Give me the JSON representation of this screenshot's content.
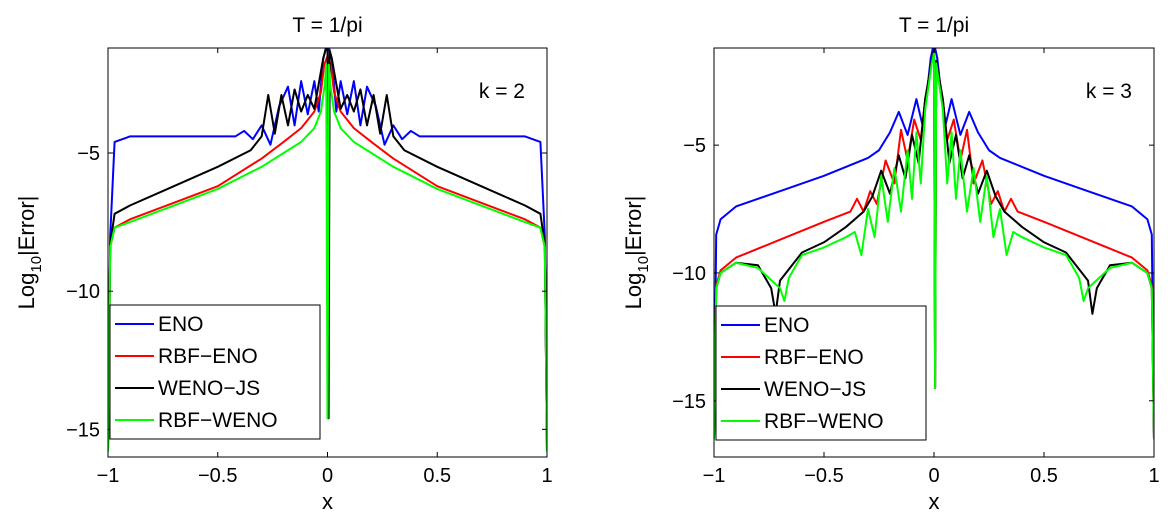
{
  "chart_data": [
    {
      "type": "line",
      "title": "T = 1/pi",
      "annotation": "k = 2",
      "xlabel": "x",
      "ylabel": {
        "base": "Log",
        "sub": "10",
        "rest": "|Error|"
      },
      "xlim": [
        -1,
        1
      ],
      "ylim": [
        -16,
        -1.2
      ],
      "xticks": [
        -1,
        -0.5,
        0,
        0.5,
        1
      ],
      "xtick_labels": [
        "−1",
        "−0.5",
        "0",
        "0.5",
        "1"
      ],
      "yticks": [
        -5,
        -10,
        -15
      ],
      "ytick_labels": [
        "−5",
        "−10",
        "−15"
      ],
      "legend_position": "lower-left",
      "series": [
        {
          "name": "ENO",
          "color": "#0000ff",
          "x": [
            -1.0,
            -0.99,
            -0.97,
            -0.9,
            -0.7,
            -0.5,
            -0.42,
            -0.38,
            -0.34,
            -0.3,
            -0.26,
            -0.22,
            -0.18,
            -0.15,
            -0.12,
            -0.09,
            -0.06,
            -0.04,
            -0.02,
            -0.01,
            0.0,
            0.01,
            0.02,
            0.04,
            0.06,
            0.09,
            0.12,
            0.15,
            0.18,
            0.22,
            0.26,
            0.3,
            0.34,
            0.38,
            0.42,
            0.5,
            0.7,
            0.9,
            0.97,
            0.99,
            1.0
          ],
          "y": [
            -15.8,
            -8.0,
            -4.6,
            -4.4,
            -4.4,
            -4.4,
            -4.4,
            -4.2,
            -4.5,
            -4.0,
            -4.7,
            -3.3,
            -2.6,
            -4.0,
            -2.4,
            -3.6,
            -2.4,
            -3.5,
            -1.6,
            -1.3,
            -0.9,
            -1.3,
            -1.6,
            -3.5,
            -2.4,
            -3.6,
            -2.4,
            -4.0,
            -2.6,
            -3.3,
            -4.7,
            -4.0,
            -4.5,
            -4.2,
            -4.4,
            -4.4,
            -4.4,
            -4.4,
            -4.6,
            -8.0,
            -15.8
          ]
        },
        {
          "name": "RBF−ENO",
          "color": "#ff0000",
          "x": [
            -1.0,
            -0.99,
            -0.97,
            -0.9,
            -0.7,
            -0.5,
            -0.3,
            -0.2,
            -0.12,
            -0.06,
            -0.03,
            -0.015,
            0.0,
            0.015,
            0.03,
            0.06,
            0.12,
            0.2,
            0.3,
            0.5,
            0.7,
            0.9,
            0.97,
            0.99,
            1.0
          ],
          "y": [
            -15.8,
            -8.4,
            -7.7,
            -7.4,
            -6.8,
            -6.2,
            -5.2,
            -4.6,
            -4.1,
            -3.5,
            -2.8,
            -1.8,
            -1.5,
            -1.8,
            -2.8,
            -3.5,
            -4.1,
            -4.6,
            -5.2,
            -6.2,
            -6.8,
            -7.4,
            -7.7,
            -8.4,
            -15.8
          ]
        },
        {
          "name": "WENO−JS",
          "color": "#000000",
          "x": [
            -1.0,
            -0.99,
            -0.97,
            -0.9,
            -0.7,
            -0.5,
            -0.35,
            -0.3,
            -0.27,
            -0.24,
            -0.21,
            -0.18,
            -0.15,
            -0.12,
            -0.09,
            -0.06,
            -0.04,
            -0.02,
            -0.01,
            0.0,
            0.005,
            0.01,
            0.02,
            0.04,
            0.06,
            0.09,
            0.12,
            0.15,
            0.18,
            0.21,
            0.24,
            0.27,
            0.3,
            0.35,
            0.5,
            0.7,
            0.9,
            0.97,
            0.99,
            1.0
          ],
          "y": [
            -15.8,
            -8.3,
            -7.2,
            -6.9,
            -6.2,
            -5.5,
            -4.9,
            -4.4,
            -2.9,
            -4.3,
            -2.9,
            -4.0,
            -2.7,
            -3.5,
            -2.9,
            -3.4,
            -2.5,
            -1.6,
            -1.3,
            -0.9,
            -14.6,
            -1.3,
            -1.6,
            -2.5,
            -3.4,
            -2.9,
            -3.5,
            -2.7,
            -4.0,
            -2.9,
            -4.3,
            -2.9,
            -4.4,
            -4.9,
            -5.5,
            -6.2,
            -6.9,
            -7.2,
            -8.3,
            -15.8
          ]
        },
        {
          "name": "RBF−WENO",
          "color": "#00ff00",
          "x": [
            -1.0,
            -0.99,
            -0.97,
            -0.9,
            -0.7,
            -0.5,
            -0.3,
            -0.2,
            -0.12,
            -0.06,
            -0.03,
            -0.012,
            -0.006,
            0.0,
            0.006,
            0.012,
            0.03,
            0.06,
            0.12,
            0.2,
            0.3,
            0.5,
            0.7,
            0.9,
            0.97,
            0.99,
            1.0
          ],
          "y": [
            -15.8,
            -8.4,
            -7.7,
            -7.5,
            -6.9,
            -6.3,
            -5.5,
            -5.0,
            -4.6,
            -4.1,
            -3.5,
            -2.5,
            -1.8,
            -14.6,
            -1.8,
            -2.5,
            -3.5,
            -4.1,
            -4.6,
            -5.0,
            -5.5,
            -6.3,
            -6.9,
            -7.5,
            -7.7,
            -8.4,
            -15.8
          ]
        }
      ]
    },
    {
      "type": "line",
      "title": "T = 1/pi",
      "annotation": "k = 3",
      "xlabel": "x",
      "ylabel": {
        "base": "Log",
        "sub": "10",
        "rest": "|Error|"
      },
      "xlim": [
        -1,
        1
      ],
      "ylim": [
        -17.2,
        -1.2
      ],
      "xticks": [
        -1,
        -0.5,
        0,
        0.5,
        1
      ],
      "xtick_labels": [
        "−1",
        "−0.5",
        "0",
        "0.5",
        "1"
      ],
      "yticks": [
        -5,
        -10,
        -15
      ],
      "ytick_labels": [
        "−5",
        "−10",
        "−15"
      ],
      "legend_position": "lower-left",
      "series": [
        {
          "name": "ENO",
          "color": "#0000ff",
          "x": [
            -1.0,
            -0.99,
            -0.97,
            -0.9,
            -0.7,
            -0.5,
            -0.3,
            -0.25,
            -0.2,
            -0.16,
            -0.12,
            -0.08,
            -0.05,
            -0.03,
            -0.015,
            0.0,
            0.015,
            0.03,
            0.05,
            0.08,
            0.12,
            0.16,
            0.2,
            0.25,
            0.3,
            0.5,
            0.7,
            0.9,
            0.97,
            0.99,
            1.0
          ],
          "y": [
            -16.5,
            -8.5,
            -7.9,
            -7.4,
            -6.8,
            -6.2,
            -5.5,
            -5.2,
            -4.5,
            -3.7,
            -4.6,
            -3.2,
            -4.3,
            -2.8,
            -1.6,
            -1.0,
            -1.6,
            -2.8,
            -4.3,
            -3.2,
            -4.6,
            -3.7,
            -4.5,
            -5.2,
            -5.5,
            -6.2,
            -6.8,
            -7.4,
            -7.9,
            -8.5,
            -16.5
          ]
        },
        {
          "name": "RBF−ENO",
          "color": "#ff0000",
          "x": [
            -1.0,
            -0.99,
            -0.97,
            -0.9,
            -0.7,
            -0.5,
            -0.38,
            -0.35,
            -0.32,
            -0.29,
            -0.26,
            -0.22,
            -0.18,
            -0.15,
            -0.12,
            -0.09,
            -0.06,
            -0.04,
            -0.02,
            -0.01,
            0.0,
            0.005,
            0.01,
            0.02,
            0.04,
            0.06,
            0.09,
            0.12,
            0.15,
            0.18,
            0.22,
            0.26,
            0.29,
            0.32,
            0.35,
            0.38,
            0.5,
            0.7,
            0.9,
            0.97,
            0.99,
            1.0
          ],
          "y": [
            -16.5,
            -10.5,
            -9.9,
            -9.4,
            -8.7,
            -8.0,
            -7.6,
            -7.1,
            -7.6,
            -6.8,
            -7.3,
            -5.6,
            -6.5,
            -4.4,
            -5.6,
            -4.0,
            -4.8,
            -3.2,
            -2.2,
            -1.7,
            -1.3,
            -14.5,
            -1.7,
            -2.2,
            -3.2,
            -4.8,
            -4.0,
            -5.6,
            -4.4,
            -6.5,
            -5.6,
            -7.3,
            -6.8,
            -7.6,
            -7.1,
            -7.6,
            -8.0,
            -8.7,
            -9.4,
            -9.9,
            -10.5,
            -16.5
          ]
        },
        {
          "name": "WENO−JS",
          "color": "#000000",
          "x": [
            -1.0,
            -0.99,
            -0.97,
            -0.9,
            -0.8,
            -0.74,
            -0.72,
            -0.7,
            -0.6,
            -0.5,
            -0.4,
            -0.32,
            -0.28,
            -0.24,
            -0.2,
            -0.16,
            -0.13,
            -0.1,
            -0.07,
            -0.04,
            -0.02,
            -0.01,
            0.0,
            0.005,
            0.01,
            0.02,
            0.04,
            0.07,
            0.1,
            0.13,
            0.16,
            0.2,
            0.24,
            0.28,
            0.32,
            0.4,
            0.5,
            0.6,
            0.7,
            0.72,
            0.74,
            0.8,
            0.9,
            0.97,
            0.99,
            1.0
          ],
          "y": [
            -16.5,
            -10.6,
            -10.0,
            -9.6,
            -9.7,
            -10.6,
            -11.6,
            -10.3,
            -9.2,
            -8.8,
            -8.2,
            -7.6,
            -7.0,
            -6.0,
            -6.9,
            -5.4,
            -6.3,
            -4.6,
            -5.7,
            -3.2,
            -2.2,
            -1.7,
            -1.3,
            -14.5,
            -1.7,
            -2.2,
            -3.2,
            -5.7,
            -4.6,
            -6.3,
            -5.4,
            -6.9,
            -6.0,
            -7.0,
            -7.6,
            -8.2,
            -8.8,
            -9.2,
            -10.3,
            -11.6,
            -10.6,
            -9.7,
            -9.6,
            -10.0,
            -10.6,
            -16.5
          ]
        },
        {
          "name": "RBF−WENO",
          "color": "#00ff00",
          "x": [
            -1.0,
            -0.99,
            -0.97,
            -0.9,
            -0.8,
            -0.7,
            -0.68,
            -0.66,
            -0.6,
            -0.5,
            -0.4,
            -0.36,
            -0.33,
            -0.3,
            -0.27,
            -0.24,
            -0.21,
            -0.18,
            -0.15,
            -0.12,
            -0.1,
            -0.08,
            -0.06,
            -0.04,
            -0.02,
            -0.01,
            0.0,
            0.005,
            0.01,
            0.02,
            0.04,
            0.06,
            0.08,
            0.1,
            0.12,
            0.15,
            0.18,
            0.21,
            0.24,
            0.27,
            0.3,
            0.33,
            0.36,
            0.4,
            0.5,
            0.6,
            0.66,
            0.68,
            0.7,
            0.8,
            0.9,
            0.97,
            0.99,
            1.0
          ],
          "y": [
            -16.5,
            -10.6,
            -10.0,
            -9.6,
            -9.8,
            -10.6,
            -11.1,
            -10.2,
            -9.3,
            -9.0,
            -8.6,
            -8.4,
            -9.3,
            -7.5,
            -8.6,
            -6.2,
            -8.0,
            -5.9,
            -7.6,
            -5.2,
            -7.1,
            -4.5,
            -6.5,
            -3.6,
            -2.4,
            -1.8,
            -1.4,
            -14.5,
            -1.8,
            -2.4,
            -3.6,
            -6.5,
            -4.5,
            -7.1,
            -5.2,
            -7.6,
            -5.9,
            -8.0,
            -6.2,
            -8.6,
            -7.5,
            -9.3,
            -8.4,
            -8.6,
            -9.0,
            -9.3,
            -10.2,
            -11.1,
            -10.6,
            -9.8,
            -9.6,
            -10.0,
            -10.6,
            -16.5
          ]
        }
      ]
    }
  ]
}
